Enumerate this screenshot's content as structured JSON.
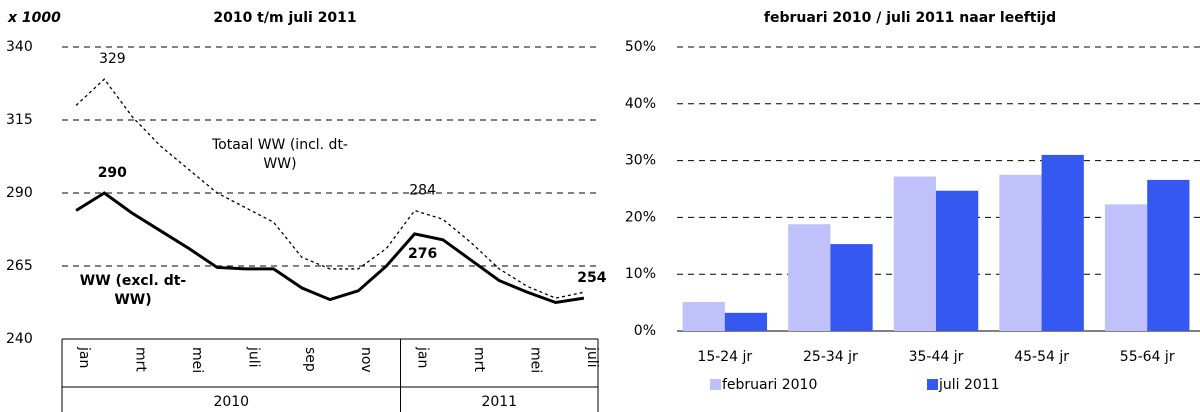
{
  "chart_data": [
    {
      "type": "line",
      "unit_label": "x 1000",
      "title": "2010 t/m juli 2011",
      "categories": [
        "jan",
        null,
        "mrt",
        null,
        "mei",
        null,
        "juli",
        null,
        "sep",
        null,
        "nov",
        null,
        "jan",
        null,
        "mrt",
        null,
        "mei",
        null,
        "juli"
      ],
      "groups": [
        {
          "label": "2010",
          "start": 0,
          "end": 11
        },
        {
          "label": "2011",
          "start": 12,
          "end": 18
        }
      ],
      "series": [
        {
          "name": "WW (excl. dt-WW)",
          "color": "#000000",
          "dash": "solid",
          "bold_labels": true,
          "label_indices": [
            1,
            12,
            18
          ],
          "values": [
            284,
            290,
            283,
            277,
            271,
            264.5,
            264,
            264,
            257.5,
            253.5,
            256.5,
            265,
            276,
            274,
            267,
            260,
            256,
            252.5,
            254
          ]
        },
        {
          "name": "Totaal WW (incl. dt-WW)",
          "color": "#000000",
          "dash": "dotted",
          "bold_labels": false,
          "label_indices": [
            1,
            12
          ],
          "values": [
            320,
            329,
            316,
            306,
            298,
            290,
            285,
            280,
            268,
            264,
            264,
            271,
            284,
            281,
            273,
            264,
            258,
            254,
            256
          ]
        }
      ],
      "ylim": [
        240,
        340
      ],
      "yticks": [
        240,
        265,
        290,
        315,
        340
      ],
      "grid": true
    },
    {
      "type": "bar",
      "title": "februari 2010 / juli 2011 naar leeftijd",
      "categories": [
        "15-24 jr",
        "25-34 jr",
        "35-44 jr",
        "45-54 jr",
        "55-64 jr"
      ],
      "series": [
        {
          "name": "februari 2010",
          "color": "#c0c0fa",
          "values": [
            5.1,
            18.8,
            27.2,
            27.5,
            22.3
          ]
        },
        {
          "name": "juli 2011",
          "color": "#3458f0",
          "values": [
            3.2,
            15.3,
            24.7,
            31.0,
            26.6
          ]
        }
      ],
      "ylim": [
        0,
        50
      ],
      "yticks": [
        {
          "value": 0,
          "label": "0%"
        },
        {
          "value": 10,
          "label": "10%"
        },
        {
          "value": 20,
          "label": "20%"
        },
        {
          "value": 30,
          "label": "30%"
        },
        {
          "value": 40,
          "label": "40%"
        },
        {
          "value": 50,
          "label": "50%"
        }
      ],
      "grid": true,
      "legend": "bottom"
    }
  ]
}
